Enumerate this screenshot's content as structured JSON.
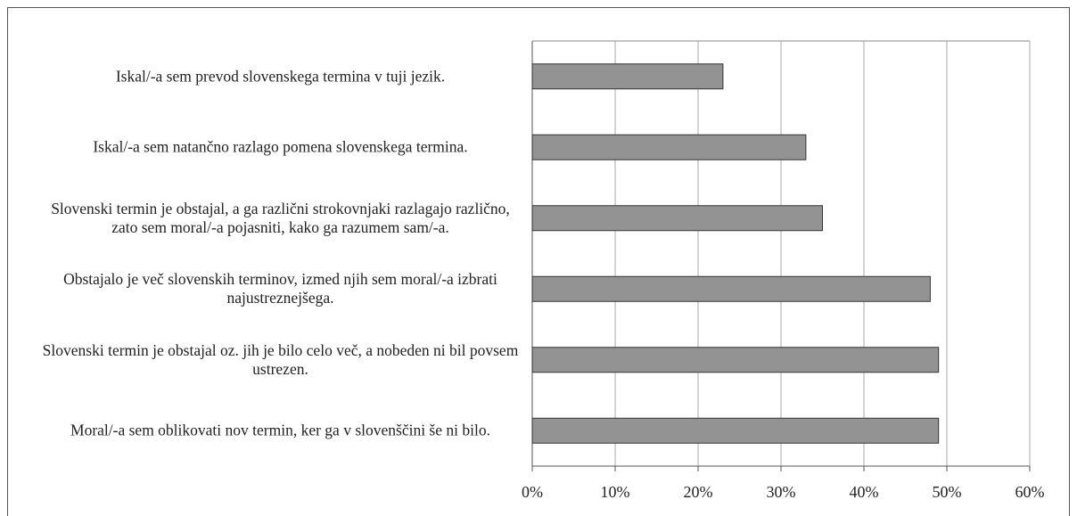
{
  "chart_data": {
    "type": "barh",
    "categories": [
      "Iskal/-a sem prevod slovenskega termina v tuji jezik.",
      "Iskal/-a sem natančno razlago pomena slovenskega termina.",
      "Slovenski termin je obstajal, a ga različni strokovnjaki razlagajo različno, zato sem moral/-a pojasniti, kako ga razumem sam/-a.",
      "Obstajalo je več slovenskih terminov, izmed njih sem moral/-a izbrati najustreznejšega.",
      "Slovenski termin je obstajal oz. jih je bilo celo več, a nobeden ni bil povsem ustrezen.",
      "Moral/-a sem oblikovati nov termin, ker ga v slovenščini še ni bilo."
    ],
    "values": [
      23,
      33,
      35,
      48,
      49,
      49
    ],
    "color": "#939393",
    "xlim": [
      0,
      60
    ],
    "xticks": [
      {
        "value": 0,
        "label": "0%"
      },
      {
        "value": 10,
        "label": "10%"
      },
      {
        "value": 20,
        "label": "20%"
      },
      {
        "value": 30,
        "label": "30%"
      },
      {
        "value": 40,
        "label": "40%"
      },
      {
        "value": 50,
        "label": "50%"
      },
      {
        "value": 60,
        "label": "60%"
      }
    ],
    "grid": true
  }
}
